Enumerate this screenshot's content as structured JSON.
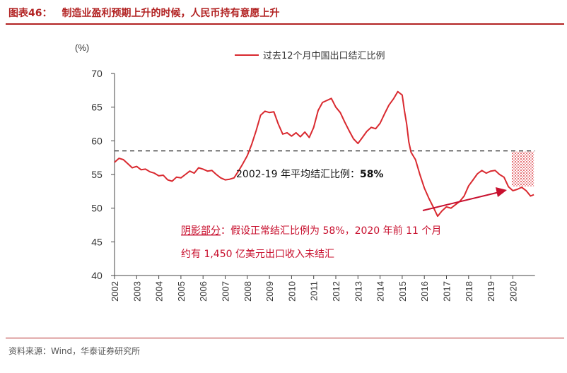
{
  "header": {
    "figure_label": "图表46：",
    "title": "制造业盈利预期上升的时候，人民币持有意愿上升"
  },
  "footer": {
    "source": "资料来源：Wind，华泰证券研究所"
  },
  "colors": {
    "accent": "#b22222",
    "series": "#d9292f",
    "text": "#333333"
  },
  "chart_data": {
    "type": "line",
    "ylabel": "(%)",
    "ylim": [
      40,
      70
    ],
    "yticks": [
      "70",
      "65",
      "60",
      "55",
      "50",
      "45",
      "40"
    ],
    "xticks": [
      "2002",
      "2003",
      "2004",
      "2005",
      "2006",
      "2007",
      "2008",
      "2009",
      "2010",
      "2011",
      "2012",
      "2013",
      "2014",
      "2015",
      "2016",
      "2017",
      "2018",
      "2019",
      "2020"
    ],
    "legend": "过去12个月中国出口结汇比例",
    "legend_position": "top-center",
    "series": [
      {
        "name": "过去12个月中国出口结汇比例",
        "color": "#d9292f",
        "points": [
          [
            2002.0,
            56.8
          ],
          [
            2002.2,
            57.4
          ],
          [
            2002.4,
            57.2
          ],
          [
            2002.6,
            56.6
          ],
          [
            2002.8,
            56.0
          ],
          [
            2003.0,
            56.2
          ],
          [
            2003.2,
            55.7
          ],
          [
            2003.4,
            55.8
          ],
          [
            2003.6,
            55.4
          ],
          [
            2003.8,
            55.2
          ],
          [
            2004.0,
            54.8
          ],
          [
            2004.2,
            54.9
          ],
          [
            2004.4,
            54.2
          ],
          [
            2004.6,
            54.0
          ],
          [
            2004.8,
            54.6
          ],
          [
            2005.0,
            54.5
          ],
          [
            2005.2,
            55.0
          ],
          [
            2005.4,
            55.5
          ],
          [
            2005.6,
            55.2
          ],
          [
            2005.8,
            56.0
          ],
          [
            2006.0,
            55.8
          ],
          [
            2006.2,
            55.5
          ],
          [
            2006.4,
            55.6
          ],
          [
            2006.6,
            55.0
          ],
          [
            2006.8,
            54.5
          ],
          [
            2007.0,
            54.2
          ],
          [
            2007.2,
            54.3
          ],
          [
            2007.4,
            54.5
          ],
          [
            2007.6,
            55.5
          ],
          [
            2007.8,
            56.6
          ],
          [
            2008.0,
            57.8
          ],
          [
            2008.2,
            59.5
          ],
          [
            2008.4,
            61.5
          ],
          [
            2008.6,
            63.8
          ],
          [
            2008.8,
            64.4
          ],
          [
            2009.0,
            64.2
          ],
          [
            2009.2,
            64.3
          ],
          [
            2009.4,
            62.5
          ],
          [
            2009.6,
            61.0
          ],
          [
            2009.8,
            61.2
          ],
          [
            2010.0,
            60.7
          ],
          [
            2010.2,
            61.2
          ],
          [
            2010.4,
            60.6
          ],
          [
            2010.6,
            61.3
          ],
          [
            2010.8,
            60.5
          ],
          [
            2011.0,
            62.0
          ],
          [
            2011.2,
            64.5
          ],
          [
            2011.4,
            65.7
          ],
          [
            2011.6,
            66.0
          ],
          [
            2011.8,
            66.3
          ],
          [
            2012.0,
            65.0
          ],
          [
            2012.2,
            64.2
          ],
          [
            2012.4,
            62.8
          ],
          [
            2012.6,
            61.5
          ],
          [
            2012.8,
            60.3
          ],
          [
            2013.0,
            59.6
          ],
          [
            2013.2,
            60.5
          ],
          [
            2013.4,
            61.4
          ],
          [
            2013.6,
            62.0
          ],
          [
            2013.8,
            61.8
          ],
          [
            2014.0,
            62.6
          ],
          [
            2014.2,
            64.0
          ],
          [
            2014.4,
            65.3
          ],
          [
            2014.6,
            66.2
          ],
          [
            2014.8,
            67.3
          ],
          [
            2015.0,
            66.8
          ],
          [
            2015.1,
            64.5
          ],
          [
            2015.2,
            62.5
          ],
          [
            2015.3,
            59.8
          ],
          [
            2015.4,
            58.3
          ],
          [
            2015.6,
            57.2
          ],
          [
            2015.8,
            55.0
          ],
          [
            2016.0,
            53.0
          ],
          [
            2016.2,
            51.5
          ],
          [
            2016.4,
            50.2
          ],
          [
            2016.6,
            48.8
          ],
          [
            2016.8,
            49.6
          ],
          [
            2017.0,
            50.2
          ],
          [
            2017.2,
            50.0
          ],
          [
            2017.4,
            50.5
          ],
          [
            2017.6,
            51.0
          ],
          [
            2017.8,
            51.8
          ],
          [
            2018.0,
            53.3
          ],
          [
            2018.2,
            54.2
          ],
          [
            2018.4,
            55.1
          ],
          [
            2018.6,
            55.6
          ],
          [
            2018.8,
            55.2
          ],
          [
            2019.0,
            55.5
          ],
          [
            2019.2,
            55.6
          ],
          [
            2019.4,
            55.0
          ],
          [
            2019.6,
            54.6
          ],
          [
            2019.8,
            53.2
          ],
          [
            2020.0,
            52.6
          ],
          [
            2020.2,
            52.8
          ],
          [
            2020.4,
            53.1
          ],
          [
            2020.6,
            52.6
          ],
          [
            2020.8,
            51.8
          ],
          [
            2020.95,
            52.0
          ]
        ]
      }
    ],
    "reference_line": {
      "value": 58,
      "style": "dashed"
    },
    "annotations": [
      {
        "text_left": "2002-19 年平均结汇比例：",
        "text_right": "58%"
      },
      {
        "shade_label": "阴影部分",
        "text": "：假设正常结汇比例为 58%，2020 年前 11 个月"
      },
      {
        "text": "约有 1,450 亿美元出口收入未结汇"
      }
    ],
    "shaded_region": {
      "x": [
        2019.95,
        2020.95
      ],
      "y": [
        53.2,
        58.4
      ]
    },
    "grid": false
  }
}
